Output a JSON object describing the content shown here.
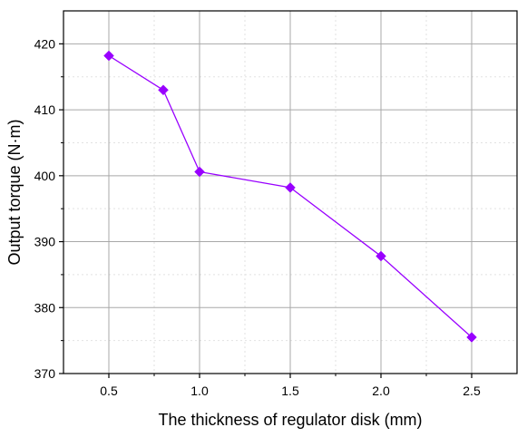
{
  "chart_data": {
    "type": "line",
    "title": "",
    "xlabel": "The thickness of regulator disk (mm)",
    "ylabel": "Output torque (N·m)",
    "xlim": [
      0.25,
      2.75
    ],
    "ylim": [
      370,
      425
    ],
    "xticks": [
      0.5,
      1.0,
      1.5,
      2.0,
      2.5
    ],
    "xtick_labels": [
      "0.5",
      "1.0",
      "1.5",
      "2.0",
      "2.5"
    ],
    "yticks": [
      370,
      380,
      390,
      400,
      410,
      420
    ],
    "ytick_labels": [
      "370",
      "380",
      "390",
      "400",
      "410",
      "420"
    ],
    "x_minor_grid": [
      0.75,
      1.25,
      1.75,
      2.25
    ],
    "y_minor_grid": [
      375,
      385,
      395,
      405,
      415
    ],
    "grid": true,
    "series": [
      {
        "x": [
          0.5,
          0.8,
          1.0,
          1.5,
          2.0,
          2.5
        ],
        "y": [
          418.2,
          413.0,
          400.6,
          398.2,
          387.8,
          375.5
        ],
        "color": "#9900ff",
        "marker": "diamond"
      }
    ]
  }
}
